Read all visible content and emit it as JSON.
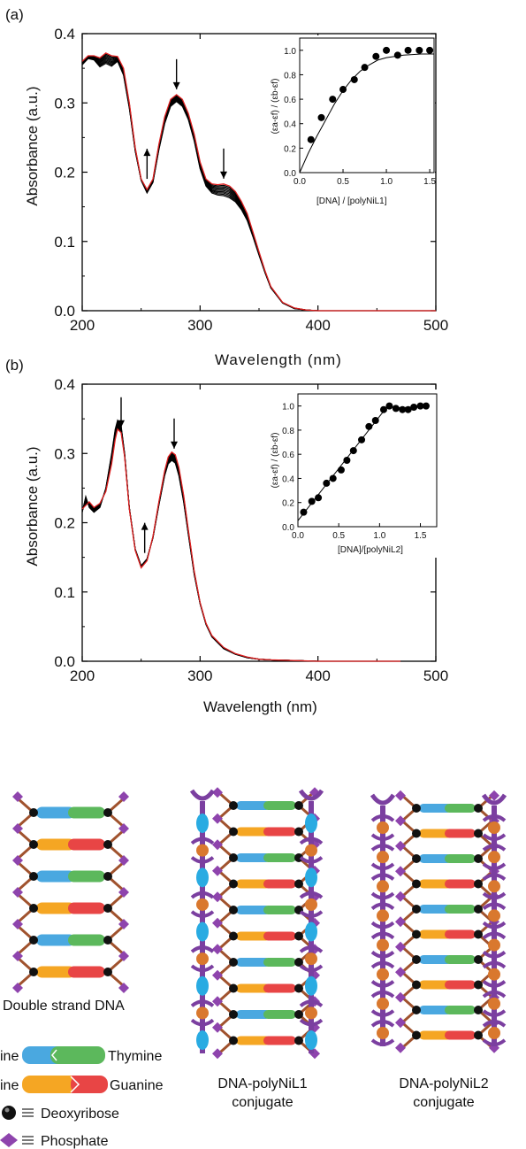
{
  "charts": {
    "a": {
      "panel_label": "(a)",
      "xlabel": "Wavelength (nm)",
      "ylabel": "Absorbance (a.u.)",
      "xticks": [
        "200",
        "300",
        "400",
        "500"
      ],
      "yticks": [
        "0.0",
        "0.1",
        "0.2",
        "0.3",
        "0.4"
      ],
      "inset": {
        "xlabel": "[DNA] / [polyNiL1]",
        "ylabel": "(εa-εf) / (εb-εf)",
        "xticks": [
          "0.0",
          "0.5",
          "1.0",
          "1.5"
        ],
        "yticks": [
          "0.0",
          "0.2",
          "0.4",
          "0.6",
          "0.8",
          "1.0"
        ]
      }
    },
    "b": {
      "panel_label": "(b)",
      "xlabel": "Wavelength (nm)",
      "ylabel": "Absorbance (a.u.)",
      "xticks": [
        "200",
        "300",
        "400",
        "500"
      ],
      "yticks": [
        "0.0",
        "0.1",
        "0.2",
        "0.3",
        "0.4"
      ],
      "inset": {
        "xlabel": "[DNA]/[polyNiL2]",
        "ylabel": "(εa-εf) / (εb-εf)",
        "xticks": [
          "0.0",
          "0.5",
          "1.0",
          "1.5"
        ],
        "yticks": [
          "0.0",
          "0.2",
          "0.4",
          "0.6",
          "0.8",
          "1.0"
        ]
      }
    }
  },
  "chart_data": [
    {
      "type": "line",
      "panel": "a",
      "xlabel": "Wavelength (nm)",
      "ylabel": "Absorbance (a.u.)",
      "xlim": [
        200,
        500
      ],
      "ylim": [
        0.0,
        0.4
      ],
      "x": [
        200,
        205,
        210,
        215,
        220,
        225,
        230,
        235,
        240,
        245,
        250,
        255,
        260,
        265,
        270,
        275,
        280,
        285,
        290,
        295,
        300,
        305,
        310,
        315,
        320,
        325,
        330,
        335,
        340,
        345,
        350,
        355,
        360,
        370,
        380,
        390,
        400,
        420,
        450,
        500
      ],
      "series": [
        {
          "color": "#e02020",
          "values": [
            0.36,
            0.368,
            0.368,
            0.365,
            0.372,
            0.368,
            0.367,
            0.35,
            0.3,
            0.235,
            0.19,
            0.175,
            0.19,
            0.24,
            0.28,
            0.305,
            0.312,
            0.305,
            0.285,
            0.255,
            0.215,
            0.19,
            0.183,
            0.182,
            0.183,
            0.18,
            0.172,
            0.158,
            0.14,
            0.113,
            0.085,
            0.058,
            0.035,
            0.012,
            0.004,
            0.001,
            0.0,
            0.0,
            0.0,
            0.0
          ]
        },
        {
          "color": "#000000",
          "values": [
            0.355,
            0.364,
            0.362,
            0.352,
            0.357,
            0.353,
            0.36,
            0.34,
            0.292,
            0.23,
            0.188,
            0.17,
            0.185,
            0.232,
            0.27,
            0.295,
            0.302,
            0.295,
            0.276,
            0.245,
            0.205,
            0.18,
            0.17,
            0.167,
            0.166,
            0.163,
            0.157,
            0.146,
            0.13,
            0.106,
            0.08,
            0.055,
            0.033,
            0.011,
            0.003,
            0.001,
            0.0,
            0.0,
            0.0,
            0.0
          ]
        }
      ],
      "arrows": [
        {
          "x": 280,
          "direction": "down"
        },
        {
          "x": 255,
          "direction": "up"
        },
        {
          "x": 320,
          "direction": "down"
        }
      ],
      "inset": {
        "type": "scatter",
        "xlabel": "[DNA] / [polyNiL1]",
        "ylabel": "(εa-εf) / (εb-εf)",
        "xlim": [
          0.0,
          1.55
        ],
        "ylim": [
          0.0,
          1.1
        ],
        "points": [
          [
            0.13,
            0.27
          ],
          [
            0.25,
            0.45
          ],
          [
            0.38,
            0.6
          ],
          [
            0.5,
            0.68
          ],
          [
            0.63,
            0.76
          ],
          [
            0.75,
            0.86
          ],
          [
            0.88,
            0.95
          ],
          [
            1.0,
            1.0
          ],
          [
            1.13,
            0.96
          ],
          [
            1.25,
            1.0
          ],
          [
            1.38,
            1.0
          ],
          [
            1.5,
            1.0
          ]
        ],
        "fit": [
          [
            0.0,
            0.0
          ],
          [
            0.1,
            0.16
          ],
          [
            0.2,
            0.3
          ],
          [
            0.3,
            0.43
          ],
          [
            0.4,
            0.56
          ],
          [
            0.5,
            0.67
          ],
          [
            0.6,
            0.76
          ],
          [
            0.7,
            0.83
          ],
          [
            0.8,
            0.88
          ],
          [
            0.9,
            0.92
          ],
          [
            1.0,
            0.94
          ],
          [
            1.2,
            0.96
          ],
          [
            1.4,
            0.97
          ],
          [
            1.55,
            0.97
          ]
        ]
      }
    },
    {
      "type": "line",
      "panel": "b",
      "xlabel": "Wavelength (nm)",
      "ylabel": "Absorbance (a.u.)",
      "xlim": [
        200,
        500
      ],
      "ylim": [
        0.0,
        0.4
      ],
      "x": [
        200,
        203,
        206,
        210,
        215,
        220,
        225,
        228,
        230,
        233,
        236,
        240,
        245,
        250,
        255,
        260,
        265,
        270,
        273,
        276,
        279,
        282,
        286,
        290,
        295,
        300,
        305,
        310,
        320,
        330,
        340,
        350,
        360,
        380,
        400,
        430,
        470
      ],
      "series": [
        {
          "color": "#e02020",
          "values": [
            0.22,
            0.225,
            0.23,
            0.222,
            0.228,
            0.245,
            0.285,
            0.32,
            0.335,
            0.33,
            0.295,
            0.22,
            0.16,
            0.135,
            0.145,
            0.18,
            0.23,
            0.275,
            0.295,
            0.302,
            0.298,
            0.28,
            0.24,
            0.19,
            0.13,
            0.085,
            0.055,
            0.037,
            0.02,
            0.011,
            0.006,
            0.003,
            0.002,
            0.001,
            0.0,
            0.0,
            0.0
          ]
        },
        {
          "color": "#000000",
          "values": [
            0.215,
            0.238,
            0.222,
            0.215,
            0.222,
            0.25,
            0.3,
            0.335,
            0.348,
            0.34,
            0.3,
            0.222,
            0.162,
            0.138,
            0.148,
            0.178,
            0.225,
            0.268,
            0.285,
            0.29,
            0.286,
            0.268,
            0.23,
            0.183,
            0.125,
            0.083,
            0.053,
            0.035,
            0.018,
            0.01,
            0.005,
            0.003,
            0.002,
            0.001,
            0.0,
            0.0,
            0.0
          ]
        }
      ],
      "arrows": [
        {
          "x": 233,
          "direction": "down"
        },
        {
          "x": 253,
          "direction": "up"
        },
        {
          "x": 278,
          "direction": "down"
        }
      ],
      "inset": {
        "type": "scatter",
        "xlabel": "[DNA]/[polyNiL2]",
        "ylabel": "(εa-εf) / (εb-εf)",
        "xlim": [
          0.0,
          1.7
        ],
        "ylim": [
          0.0,
          1.1
        ],
        "points": [
          [
            0.07,
            0.12
          ],
          [
            0.17,
            0.21
          ],
          [
            0.25,
            0.24
          ],
          [
            0.35,
            0.36
          ],
          [
            0.43,
            0.4
          ],
          [
            0.53,
            0.47
          ],
          [
            0.6,
            0.55
          ],
          [
            0.68,
            0.63
          ],
          [
            0.78,
            0.72
          ],
          [
            0.87,
            0.83
          ],
          [
            0.95,
            0.88
          ],
          [
            1.05,
            0.97
          ],
          [
            1.12,
            1.0
          ],
          [
            1.2,
            0.98
          ],
          [
            1.28,
            0.97
          ],
          [
            1.35,
            0.97
          ],
          [
            1.42,
            0.99
          ],
          [
            1.5,
            1.0
          ],
          [
            1.57,
            1.0
          ]
        ],
        "fit": [
          [
            0.0,
            0.05
          ],
          [
            1.1,
            1.0
          ],
          [
            1.2,
            0.985
          ],
          [
            1.6,
            0.995
          ]
        ]
      }
    }
  ],
  "diagram": {
    "dsdna_caption": "Double strand DNA",
    "conj1_caption_line1": "DNA-polyNiL1",
    "conj1_caption_line2": "conjugate",
    "conj2_caption_line1": "DNA-polyNiL2",
    "conj2_caption_line2": "conjugate",
    "legend": {
      "pair1_left": "ine",
      "pair1_right": "Thymine",
      "pair2_left": "ine",
      "pair2_right": "Guanine",
      "deoxyribose": "Deoxyribose",
      "phosphate": "Phosphate"
    },
    "colors": {
      "adenine": "#4aa8e0",
      "thymine": "#5cb85c",
      "cytosine": "#f5a623",
      "guanine": "#e84545",
      "backbone": "#a0522d",
      "phosphate": "#8e44ad",
      "polymer": "#7b3fa0",
      "ni_cyan": "#29abe2",
      "ni_orange": "#d9782e"
    }
  }
}
